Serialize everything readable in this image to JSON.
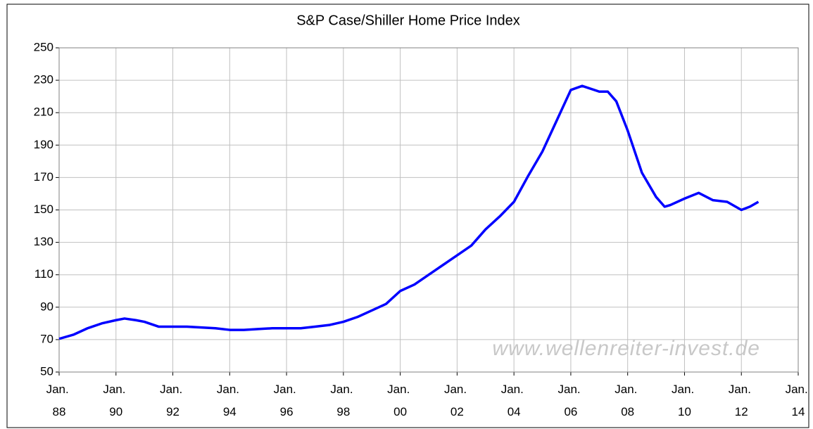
{
  "chart_data": {
    "type": "line",
    "title": "S&P Case/Shiller Home Price Index",
    "annotations": [
      "www.wellenreiter-invest.de"
    ],
    "x": [
      1988.0,
      1988.5,
      1989.0,
      1989.5,
      1990.0,
      1990.3,
      1990.7,
      1991.0,
      1991.5,
      1992.0,
      1992.5,
      1993.0,
      1993.5,
      1994.0,
      1994.5,
      1995.0,
      1995.5,
      1996.0,
      1996.5,
      1997.0,
      1997.5,
      1998.0,
      1998.5,
      1999.0,
      1999.5,
      2000.0,
      2000.5,
      2001.0,
      2001.5,
      2002.0,
      2002.5,
      2003.0,
      2003.5,
      2004.0,
      2004.5,
      2005.0,
      2005.5,
      2006.0,
      2006.4,
      2007.0,
      2007.3,
      2007.6,
      2008.0,
      2008.5,
      2009.0,
      2009.3,
      2009.5,
      2010.0,
      2010.5,
      2011.0,
      2011.5,
      2012.0,
      2012.3,
      2012.6
    ],
    "series": [
      {
        "name": "S&P Case/Shiller Home Price Index",
        "color": "#0000ff",
        "values": [
          70.5,
          73,
          77,
          80,
          82,
          83,
          82,
          81,
          78,
          78,
          78,
          77.5,
          77,
          76,
          76,
          76.5,
          77,
          77,
          77,
          78,
          79,
          81,
          84,
          88,
          92,
          100,
          104,
          110,
          116,
          122,
          128,
          138,
          146,
          155,
          171,
          186,
          205,
          224,
          226.5,
          223,
          223,
          217,
          199,
          173,
          158,
          152,
          153,
          157,
          160.5,
          156,
          155,
          150,
          152,
          155
        ]
      }
    ],
    "xlim": [
      1988,
      2014
    ],
    "xticks": [
      {
        "value": 1988,
        "label": "Jan. 88"
      },
      {
        "value": 1990,
        "label": "Jan. 90"
      },
      {
        "value": 1992,
        "label": "Jan. 92"
      },
      {
        "value": 1994,
        "label": "Jan. 94"
      },
      {
        "value": 1996,
        "label": "Jan. 96"
      },
      {
        "value": 1998,
        "label": "Jan. 98"
      },
      {
        "value": 2000,
        "label": "Jan. 00"
      },
      {
        "value": 2002,
        "label": "Jan. 02"
      },
      {
        "value": 2004,
        "label": "Jan. 04"
      },
      {
        "value": 2006,
        "label": "Jan. 06"
      },
      {
        "value": 2008,
        "label": "Jan. 08"
      },
      {
        "value": 2010,
        "label": "Jan. 10"
      },
      {
        "value": 2012,
        "label": "Jan. 12"
      },
      {
        "value": 2014,
        "label": "Jan. 14"
      }
    ],
    "ylim": [
      50,
      250
    ],
    "yticks": [
      50,
      70,
      90,
      110,
      130,
      150,
      170,
      190,
      210,
      230,
      250
    ],
    "grid": true
  }
}
